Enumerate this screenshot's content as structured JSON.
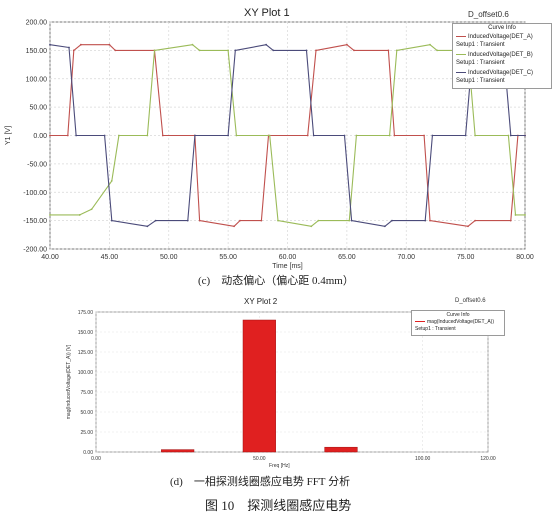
{
  "chart_data": [
    {
      "type": "line",
      "title": "XY Plot 1",
      "corner_label": "D_offset0.6",
      "xlabel": "Time [ms]",
      "ylabel": "Y1 [V]",
      "xlim": [
        40,
        80
      ],
      "ylim": [
        -200,
        200
      ],
      "x_ticks": [
        "40.00",
        "45.00",
        "50.00",
        "55.00",
        "60.00",
        "65.00",
        "70.00",
        "75.00",
        "80.00"
      ],
      "y_ticks": [
        "200.00",
        "150.00",
        "100.00",
        "50.00",
        "0.00",
        "-50.00",
        "-100.00",
        "-150.00",
        "-200.00"
      ],
      "grid": true,
      "legend_position": "top-right",
      "legend_title": "Curve Info",
      "period_ms": 20,
      "series": [
        {
          "name": "InducedVoltage(DET_A)",
          "setup": "Setup1 : Transient",
          "color": "#c0504d",
          "x": [
            40,
            41.5,
            42,
            42.6,
            45,
            45.5,
            48.8,
            49.5,
            52.2,
            52.6,
            55.5,
            56,
            57.8,
            58.4,
            61.7,
            62.4,
            65,
            65.6,
            68.5,
            69,
            71.5,
            72,
            75.2,
            75.8,
            78.8,
            79.4,
            80
          ],
          "values": [
            0,
            0,
            150,
            160,
            160,
            150,
            150,
            0,
            0,
            -150,
            -160,
            -150,
            -150,
            0,
            0,
            150,
            160,
            150,
            150,
            0,
            0,
            -150,
            -160,
            -150,
            -150,
            0,
            0
          ]
        },
        {
          "name": "InducedVoltage(DET_B)",
          "setup": "Setup1 : Transient",
          "color": "#9bbb59",
          "x": [
            40,
            42.5,
            43.5,
            45.2,
            45.8,
            48.2,
            48.8,
            52,
            52.6,
            55,
            55.7,
            58.5,
            59.2,
            62,
            62.6,
            65.2,
            65.8,
            68.6,
            69.2,
            72,
            72.6,
            75.2,
            75.8,
            78.6,
            79.2,
            80
          ],
          "values": [
            -140,
            -140,
            -130,
            -80,
            0,
            0,
            150,
            160,
            150,
            150,
            0,
            0,
            -150,
            -160,
            -150,
            -150,
            0,
            0,
            150,
            160,
            150,
            150,
            0,
            0,
            -140,
            -140
          ]
        },
        {
          "name": "InducedVoltage(DET_C)",
          "setup": "Setup1 : Transient",
          "color": "#4b4b7a",
          "x": [
            40,
            41.6,
            42.2,
            44.6,
            45.2,
            48.2,
            48.9,
            51.6,
            52.2,
            55,
            55.6,
            58.2,
            58.8,
            61.6,
            62.2,
            64.8,
            65.4,
            68.2,
            68.8,
            71.6,
            72.2,
            75,
            75.6,
            78.2,
            78.8,
            80
          ],
          "values": [
            160,
            155,
            0,
            0,
            -150,
            -160,
            -150,
            -150,
            0,
            0,
            150,
            160,
            150,
            150,
            0,
            0,
            -150,
            -160,
            -150,
            -150,
            0,
            0,
            150,
            150,
            0,
            0
          ]
        }
      ],
      "caption": "(c)　动态偏心（偏心距 0.4mm）"
    },
    {
      "type": "bar",
      "title": "XY Plot 2",
      "corner_label": "D_offset0.6",
      "xlabel": "Freq [Hz]",
      "ylabel": "mag(InducedVoltage(DET_A)) [V]",
      "xlim": [
        0,
        120
      ],
      "ylim": [
        0,
        175
      ],
      "x_ticks": [
        "0.00",
        "50.00",
        "100.00",
        "120.00"
      ],
      "y_ticks": [
        "175.00",
        "150.00",
        "125.00",
        "100.00",
        "75.00",
        "50.00",
        "25.00",
        "0.00"
      ],
      "legend_position": "top-right",
      "legend_title": "Curve Info",
      "series": [
        {
          "name": "mag(InducedVoltage(DET_A))",
          "setup": "Setup1 : Transient",
          "color": "#e02020",
          "x": [
            25,
            50,
            75
          ],
          "values": [
            3,
            165,
            6
          ]
        }
      ],
      "bar_width": 10,
      "caption": "(d)　一相探测线圈感应电势 FFT 分析"
    }
  ],
  "figure_caption": "图 10　探测线圈感应电势"
}
